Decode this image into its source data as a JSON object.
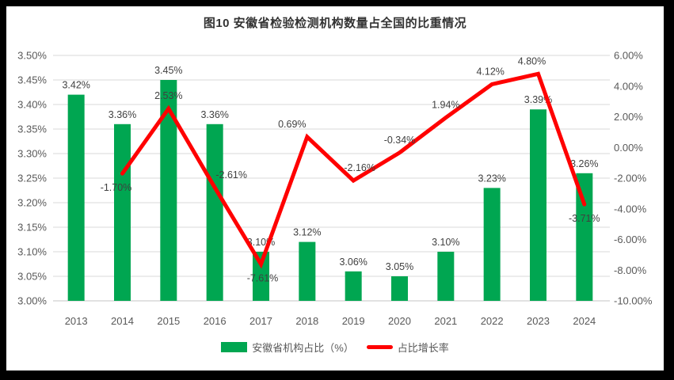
{
  "background": {
    "frame_color": "#000000",
    "panel_color": "#ffffff"
  },
  "title": "图10 安徽省检验检测机构数量占全国的比重情况",
  "legend": {
    "items": [
      {
        "label": "安徽省机构占比（%）",
        "marker": "bar-swatch",
        "color": "#00A651"
      },
      {
        "label": "占比增长率",
        "marker": "line-swatch",
        "color": "#FF0000"
      }
    ]
  },
  "chart_data": {
    "type": "combo-bar-line",
    "title": "图10 安徽省检验检测机构数量占全国的比重情况",
    "categories": [
      "2013",
      "2014",
      "2015",
      "2016",
      "2017",
      "2018",
      "2019",
      "2020",
      "2021",
      "2022",
      "2023",
      "2024"
    ],
    "series": [
      {
        "name": "安徽省机构占比（%）",
        "type": "bar",
        "axis": "left",
        "color": "#00A651",
        "values": [
          3.42,
          3.36,
          3.45,
          3.36,
          3.1,
          3.12,
          3.06,
          3.05,
          3.1,
          3.23,
          3.39,
          3.26
        ],
        "labels": [
          "3.42%",
          "3.36%",
          "3.45%",
          "3.36%",
          "3.10%",
          "3.12%",
          "3.06%",
          "3.05%",
          "3.10%",
          "3.23%",
          "3.39%",
          "3.26%"
        ]
      },
      {
        "name": "占比增长率",
        "type": "line",
        "axis": "right",
        "color": "#FF0000",
        "values": [
          null,
          -1.7,
          2.53,
          -2.61,
          -7.61,
          0.69,
          -2.16,
          -0.34,
          1.94,
          4.12,
          4.8,
          -3.71
        ],
        "labels": [
          null,
          "-1.70%",
          "2.53%",
          "-2.61%",
          "-7.61%",
          "0.69%",
          "-2.16%",
          "-0.34%",
          "1.94%",
          "4.12%",
          "4.80%",
          "-3.71%"
        ],
        "label_placement": [
          null,
          "below",
          "above",
          "above",
          "below",
          "above",
          "above",
          "above",
          "above",
          "above",
          "above",
          "below"
        ],
        "label_dx": [
          0,
          -8,
          0,
          21,
          2,
          -19,
          8,
          0,
          0,
          -2,
          -8,
          0
        ]
      }
    ],
    "left_axis": {
      "min": 3.0,
      "max": 3.5,
      "step": 0.05,
      "tick_labels": [
        "3.50%",
        "3.45%",
        "3.40%",
        "3.35%",
        "3.30%",
        "3.25%",
        "3.20%",
        "3.15%",
        "3.10%",
        "3.05%",
        "3.00%"
      ]
    },
    "right_axis": {
      "min": -10,
      "max": 6,
      "step": 2,
      "tick_labels": [
        "6.00%",
        "4.00%",
        "2.00%",
        "0.00%",
        "-2.00%",
        "-4.00%",
        "-6.00%",
        "-8.00%",
        "-10.00%"
      ]
    },
    "grid": true,
    "legend_position": "bottom",
    "colors": {
      "gridline": "#D9D9D9",
      "axis_line": "#C6C6C6",
      "axis_text": "#595959",
      "data_label_text": "#404040",
      "title_text": "#333333"
    }
  }
}
